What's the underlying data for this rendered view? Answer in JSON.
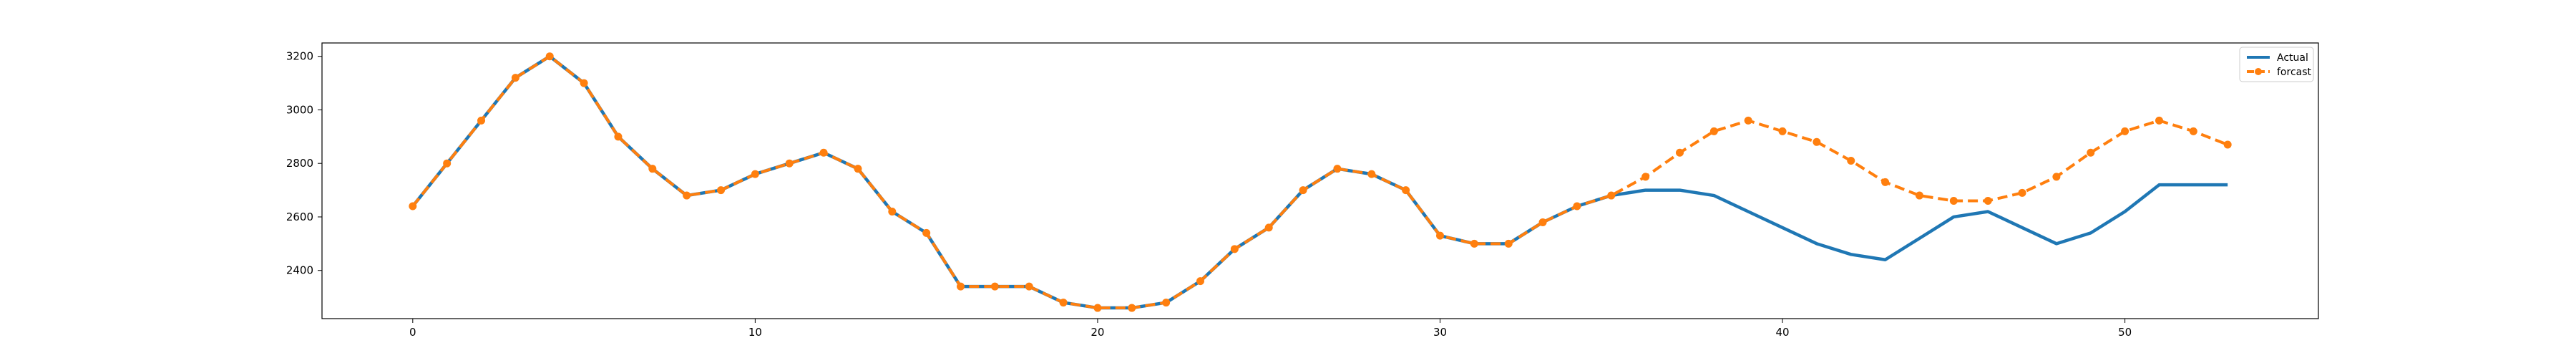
{
  "chart_data": {
    "type": "line",
    "title": "",
    "xlabel": "",
    "ylabel": "",
    "xlim": [
      -2.65,
      55.65
    ],
    "ylim": [
      2220,
      3250
    ],
    "xticks": [
      0,
      10,
      20,
      30,
      40,
      50
    ],
    "yticks": [
      2400,
      2600,
      2800,
      3000,
      3200
    ],
    "grid": false,
    "legend_position": "top-right",
    "series": [
      {
        "name": "Actual",
        "color": "#1f77b4",
        "style": "solid",
        "x": [
          0,
          1,
          2,
          3,
          4,
          5,
          6,
          7,
          8,
          9,
          10,
          11,
          12,
          13,
          14,
          15,
          16,
          17,
          18,
          19,
          20,
          21,
          22,
          23,
          24,
          25,
          26,
          27,
          28,
          29,
          30,
          31,
          32,
          33,
          34,
          35,
          36,
          37,
          38,
          39,
          40,
          41,
          42,
          43,
          44,
          45,
          46,
          47,
          48,
          49,
          50,
          51,
          52,
          53
        ],
        "values": [
          2640,
          2800,
          2960,
          3120,
          3200,
          3100,
          2900,
          2780,
          2680,
          2700,
          2760,
          2800,
          2840,
          2780,
          2620,
          2540,
          2340,
          2340,
          2340,
          2280,
          2260,
          2260,
          2280,
          2360,
          2480,
          2560,
          2700,
          2780,
          2760,
          2700,
          2530,
          2500,
          2500,
          2580,
          2640,
          2680,
          2700,
          2700,
          2680,
          2620,
          2560,
          2500,
          2460,
          2440,
          2520,
          2600,
          2620,
          2560,
          2500,
          2540,
          2620,
          2720,
          2720,
          2720
        ]
      },
      {
        "name": "forcast",
        "color": "#ff7f0e",
        "style": "dashed",
        "marker": "circle",
        "x": [
          0,
          1,
          2,
          3,
          4,
          5,
          6,
          7,
          8,
          9,
          10,
          11,
          12,
          13,
          14,
          15,
          16,
          17,
          18,
          19,
          20,
          21,
          22,
          23,
          24,
          25,
          26,
          27,
          28,
          29,
          30,
          31,
          32,
          33,
          34,
          35,
          36,
          37,
          38,
          39,
          40,
          41,
          42,
          43,
          44,
          45,
          46,
          47,
          48,
          49,
          50,
          51,
          52,
          53
        ],
        "values": [
          2640,
          2800,
          2960,
          3120,
          3200,
          3100,
          2900,
          2780,
          2680,
          2700,
          2760,
          2800,
          2840,
          2780,
          2620,
          2540,
          2340,
          2340,
          2340,
          2280,
          2260,
          2260,
          2280,
          2360,
          2480,
          2560,
          2700,
          2780,
          2760,
          2700,
          2530,
          2500,
          2500,
          2580,
          2640,
          2680,
          2750,
          2840,
          2920,
          2960,
          2920,
          2880,
          2810,
          2730,
          2680,
          2660,
          2660,
          2690,
          2750,
          2840,
          2920,
          2960,
          2920,
          2870
        ]
      }
    ]
  }
}
